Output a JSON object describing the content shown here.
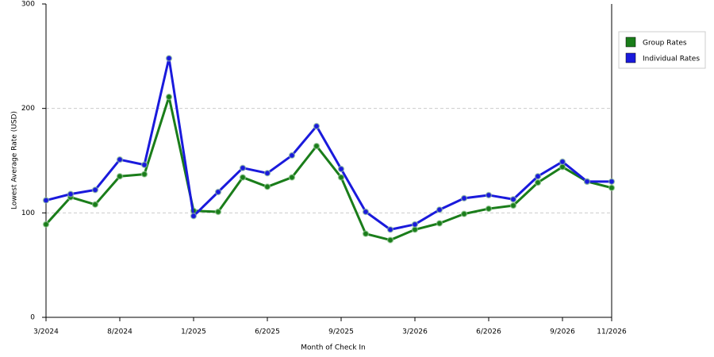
{
  "chart_data": {
    "type": "line",
    "x_label": "Month of Check In",
    "y_label": "Lowest Average Rate (USD)",
    "categories": [
      "3/2024",
      null,
      null,
      "8/2024",
      null,
      null,
      "1/2025",
      null,
      null,
      "6/2025",
      null,
      null,
      "9/2025",
      null,
      null,
      "3/2026",
      null,
      null,
      "6/2026",
      null,
      null,
      "9/2026",
      null,
      "11/2026"
    ],
    "series": [
      {
        "name": "Group Rates",
        "color": "#1a7d1a",
        "values": [
          89,
          115,
          108,
          135,
          137,
          211,
          102,
          101,
          134,
          125,
          134,
          164,
          134,
          80,
          74,
          84,
          90,
          99,
          104,
          107,
          129,
          144,
          130,
          124
        ]
      },
      {
        "name": "Individual Rates",
        "color": "#1a1adc",
        "values": [
          112,
          118,
          122,
          151,
          146,
          248,
          97,
          120,
          143,
          138,
          155,
          183,
          142,
          101,
          84,
          89,
          103,
          114,
          117,
          113,
          135,
          149,
          130,
          130
        ]
      }
    ],
    "ylim": [
      0,
      300
    ],
    "yticks": [
      0,
      100,
      200,
      300
    ],
    "grid": true,
    "legend": "top-right"
  }
}
